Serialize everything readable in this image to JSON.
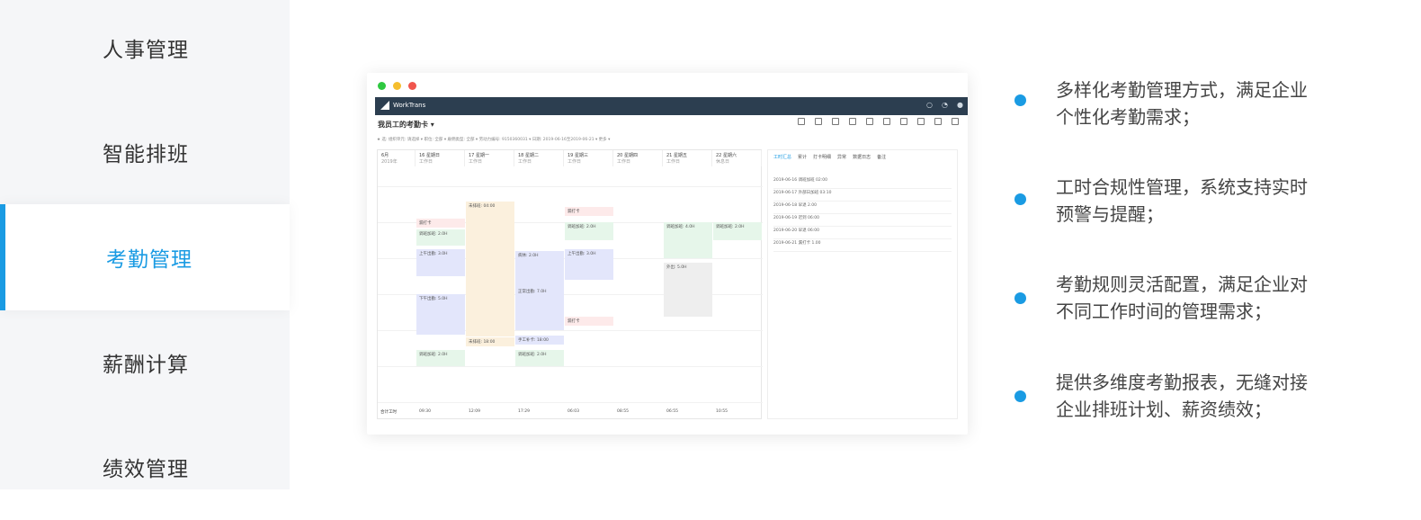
{
  "sidebar": {
    "items": [
      {
        "label": "人事管理",
        "active": false
      },
      {
        "label": "智能排班",
        "active": false
      },
      {
        "label": "考勤管理",
        "active": true
      },
      {
        "label": "薪酬计算",
        "active": false
      },
      {
        "label": "绩效管理",
        "active": false
      }
    ]
  },
  "colors": {
    "accent": "#1a9be3",
    "sidebar_bg": "#f5f6f8",
    "appbar": "#2c3e50",
    "dot_red": "#f0554d",
    "dot_yellow": "#f5be2e",
    "dot_green": "#2ec840"
  },
  "mock": {
    "brand": "WorkTrans",
    "page_title": "我员工的考勤卡 ▾",
    "filters": "★ 选:  组织单元: 请选择 ▾   职位: 全部 ▾   雇佣类型: 全部 ▾   劳动力编号: 9150360031 ▾   日期: 2019-06-16至2019-06-21 ▾   更多 ▾",
    "days": [
      {
        "date": "6月",
        "sub": "2019年"
      },
      {
        "date": "16 星期日",
        "sub": "工作日"
      },
      {
        "date": "17 星期一",
        "sub": "工作日"
      },
      {
        "date": "18 星期二",
        "sub": "工作日"
      },
      {
        "date": "19 星期三",
        "sub": "工作日"
      },
      {
        "date": "20 星期四",
        "sub": "工作日"
      },
      {
        "date": "21 星期五",
        "sub": "工作日"
      },
      {
        "date": "22 星期六",
        "sub": "休息日"
      }
    ],
    "blocks": [
      {
        "text": "漏打卡",
        "color": "#fdeaea"
      },
      {
        "text": "调班加班: 2.0H",
        "color": "#e6f6ea"
      },
      {
        "text": "上午出勤: 3.0H",
        "color": "#e3e6fb"
      },
      {
        "text": "下午出勤: 5.0H",
        "color": "#e3e6fb"
      },
      {
        "text": "调班加班: 2.0H",
        "color": "#e6f6ea"
      },
      {
        "text": "未排班: 04:00",
        "color": "#fbf0dd"
      },
      {
        "text": "未排班: 18:00",
        "color": "#fbf0dd"
      },
      {
        "text": "病休: 2.0H",
        "color": "#e3e6fb"
      },
      {
        "text": "正常出勤: 7.0H",
        "color": "#e3e6fb"
      },
      {
        "text": "手工补卡: 18:00",
        "color": "#e3e6fb"
      },
      {
        "text": "调班加班: 2.0H",
        "color": "#e6f6ea"
      },
      {
        "text": "漏打卡",
        "color": "#fdeaea"
      },
      {
        "text": "调班加班: 2.0H",
        "color": "#e6f6ea"
      },
      {
        "text": "上午出勤: 3.0H",
        "color": "#e3e6fb"
      },
      {
        "text": "漏打卡",
        "color": "#fdeaea"
      },
      {
        "text": "调班加班: 4.0H",
        "color": "#e6f6ea"
      },
      {
        "text": "外出: 5.0H",
        "color": "#eeeeee"
      },
      {
        "text": "调班加班: 2.0H",
        "color": "#e6f6ea"
      }
    ],
    "total_label": "合计工时",
    "totals": [
      "09:30",
      "12:09",
      "17:29",
      "06:03",
      "08:55",
      "06:55",
      "10:55"
    ],
    "panel_tabs": [
      "工时汇总",
      "累计",
      "打卡明细",
      "异常",
      "数据日志",
      "备注"
    ],
    "panel_rows": [
      "2019-06-16  调班加班  02:00",
      "2019-06-17  外部日加班  03:10",
      "2019-06-18  早退  2.00",
      "2019-06-19  迟到  06:00",
      "2019-06-20  早退  06:00",
      "2019-06-21  漏打卡  1.00"
    ]
  },
  "features": [
    {
      "text": "多样化考勤管理方式，满足企业个性化考勤需求；"
    },
    {
      "text": "工时合规性管理，系统支持实时预警与提醒；"
    },
    {
      "text": "考勤规则灵活配置，满足企业对不同工作时间的管理需求；"
    },
    {
      "text": "提供多维度考勤报表，无缝对接企业排班计划、薪资绩效；"
    }
  ]
}
